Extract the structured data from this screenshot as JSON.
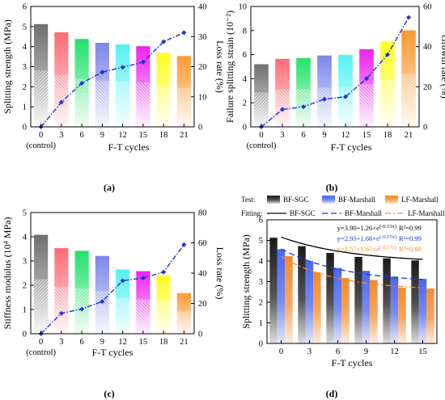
{
  "chart_data": [
    {
      "type": "bar",
      "panel_label": "(a)",
      "xlabel": "F-T cycles",
      "ylabel": "Splitting strength (MPa)",
      "y2label": "Loss rate (%)",
      "categories": [
        "0",
        "3",
        "6",
        "9",
        "12",
        "15",
        "18",
        "21"
      ],
      "first_category_sublabel": "(control)",
      "bar_colors": [
        "#6f6f6f",
        "#ff6b76",
        "#22e36a",
        "#7d86ea",
        "#55f2f2",
        "#f022f0",
        "#ffff22",
        "#ff9a33"
      ],
      "series": [
        {
          "type": "bar",
          "axis": "left",
          "values": [
            5.12,
            4.71,
            4.38,
            4.19,
            4.11,
            4.02,
            3.68,
            3.53
          ]
        },
        {
          "type": "line",
          "axis": "right",
          "color": "#1a34d8",
          "values": [
            0,
            8.2,
            14.5,
            18.2,
            19.8,
            21.5,
            28.3,
            31.3
          ]
        }
      ],
      "ylim": [
        0,
        6
      ],
      "yticks": [
        "0",
        "1",
        "2",
        "3",
        "4",
        "5",
        "6"
      ],
      "y2lim": [
        0,
        40
      ],
      "y2ticks": [
        "0",
        "10",
        "20",
        "30",
        "40"
      ]
    },
    {
      "type": "bar",
      "panel_label": "(b)",
      "xlabel": "F-T cycles",
      "ylabel": "Failure splitting strain (10⁻²)",
      "y2label": "Growth rate (%)",
      "categories": [
        "0",
        "3",
        "6",
        "9",
        "12",
        "15",
        "18",
        "21"
      ],
      "first_category_sublabel": "(control)",
      "bar_colors": [
        "#6f6f6f",
        "#ff6b76",
        "#22e36a",
        "#7d86ea",
        "#55f2f2",
        "#f022f0",
        "#ffff22",
        "#ff9a33"
      ],
      "series": [
        {
          "type": "bar",
          "axis": "left",
          "values": [
            5.2,
            5.65,
            5.72,
            5.93,
            5.98,
            6.45,
            7.08,
            8.02
          ]
        },
        {
          "type": "line",
          "axis": "right",
          "color": "#1a34d8",
          "values": [
            0,
            8.7,
            10,
            13.8,
            15,
            24,
            36,
            54.5
          ]
        }
      ],
      "ylim": [
        0,
        10
      ],
      "yticks": [
        "0",
        "2",
        "4",
        "6",
        "8",
        "10"
      ],
      "y2lim": [
        0,
        60
      ],
      "y2ticks": [
        "0",
        "20",
        "40",
        "60"
      ]
    },
    {
      "type": "bar",
      "panel_label": "(c)",
      "xlabel": "F-T cycles",
      "ylabel": "Stiffness modulus (10⁴ MPa)",
      "y2label": "Loss rate (%)",
      "categories": [
        "0",
        "3",
        "6",
        "9",
        "12",
        "15",
        "18",
        "21"
      ],
      "first_category_sublabel": "(control)",
      "bar_colors": [
        "#6f6f6f",
        "#ff6b76",
        "#22e36a",
        "#7d86ea",
        "#55f2f2",
        "#f022f0",
        "#ffff22",
        "#ff9a33"
      ],
      "series": [
        {
          "type": "bar",
          "axis": "left",
          "values": [
            4.08,
            3.53,
            3.42,
            3.21,
            2.65,
            2.58,
            2.42,
            1.68
          ]
        },
        {
          "type": "line",
          "axis": "right",
          "color": "#1a34d8",
          "values": [
            0,
            13.5,
            16.3,
            21.3,
            35,
            36.8,
            40.7,
            58.8
          ]
        }
      ],
      "ylim": [
        0,
        5
      ],
      "yticks": [
        "0",
        "1",
        "2",
        "3",
        "4",
        "5"
      ],
      "y2lim": [
        0,
        80
      ],
      "y2ticks": [
        "0",
        "20",
        "40",
        "60",
        "80"
      ]
    },
    {
      "type": "bar",
      "panel_label": "(d)",
      "xlabel": "F-T cycles",
      "ylabel": "Splitting strength (MPa)",
      "categories": [
        "0",
        "3",
        "6",
        "9",
        "12",
        "15"
      ],
      "ylim": [
        0,
        6
      ],
      "yticks": [
        "0",
        "1",
        "2",
        "3",
        "4",
        "5",
        "6"
      ],
      "legend_test_label": "Test:",
      "legend_fit_label": "Fitting:",
      "series": [
        {
          "name": "BF-SGC",
          "type": "bar",
          "color": "#1a1a1a",
          "values": [
            5.13,
            4.72,
            4.39,
            4.2,
            4.13,
            4.03
          ]
        },
        {
          "name": "BF-Marshall",
          "type": "bar",
          "color": "#4a66f0",
          "values": [
            4.57,
            4.0,
            3.66,
            3.52,
            3.24,
            3.13
          ]
        },
        {
          "name": "LF-Marshall",
          "type": "bar",
          "color": "#f58a2a",
          "values": [
            4.24,
            3.45,
            3.17,
            3.08,
            2.7,
            2.66
          ]
        }
      ],
      "fits": [
        {
          "name": "BF-SGC",
          "color": "#000000",
          "dash": "",
          "a": 3.9,
          "b": 1.26,
          "k": 0.13,
          "equation": "y=3.90+1.26×e^(-0.13x)",
          "eq_main": "y=3.90+1.26×e",
          "eq_exp": "(-0.13x)",
          "r2": "R²=0.99"
        },
        {
          "name": "BF-Marshall",
          "color": "#1a34d8",
          "dash": "7,4",
          "a": 2.93,
          "b": 1.66,
          "k": 0.15,
          "equation": "y=2.93+1.66×e^(-0.15x)",
          "eq_main": "y=2.93+1.66×e",
          "eq_exp": "(-0.15x)",
          "r2": "R²=0.99"
        },
        {
          "name": "LF-Marshall",
          "color": "#f58a2a",
          "dash": "7,3,2,3",
          "a": 2.57,
          "b": 1.65,
          "k": 0.17,
          "equation": "y=2.57+1.65×e^(-0.17x)",
          "eq_main": "y=2.57+1.65×e",
          "eq_exp": "(-0.17x)",
          "r2": "R²=0.98"
        }
      ]
    }
  ]
}
